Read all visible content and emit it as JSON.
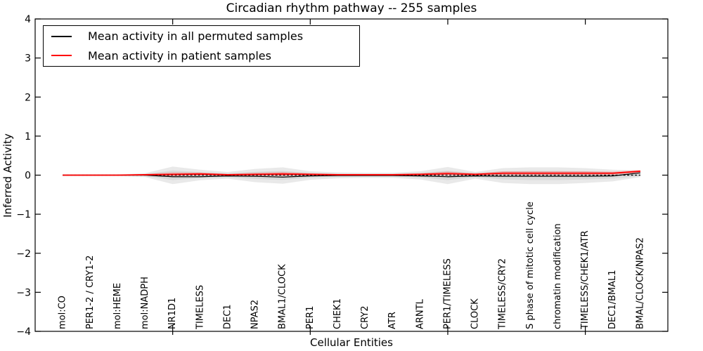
{
  "figure": {
    "background": "#ffffff"
  },
  "chart_data": {
    "type": "line",
    "title": "Circadian rhythm pathway -- 255 samples",
    "xlabel": "Cellular Entities",
    "ylabel": "Inferred Activity",
    "ylim": [
      -4,
      4
    ],
    "ytick_values": [
      4,
      3,
      2,
      1,
      0,
      -1,
      -2,
      -3,
      -4
    ],
    "ytick_labels": [
      "4",
      "3",
      "2",
      "1",
      "0",
      "−1",
      "−2",
      "−3",
      "−4"
    ],
    "grid": false,
    "categories": [
      "mol:CO",
      "PER1-2 / CRY1-2",
      "mol:HEME",
      "mol:NADPH",
      "NR1D1",
      "TIMELESS",
      "DEC1",
      "NPAS2",
      "BMAL1/CLOCK",
      "PER1",
      "CHEK1",
      "CRY2",
      "ATR",
      "ARNTL",
      "PER1/TIMELESS",
      "CLOCK",
      "TIMELESS/CRY2",
      "S phase of mitotic cell cycle",
      "chromatin modification",
      "TIMELESS/CHEK1/ATR",
      "DEC1/BMAL1",
      "BMAL/CLOCK/NPAS2"
    ],
    "x_major_tick_indices": [
      4,
      9,
      14,
      19
    ],
    "legend": {
      "position": "upper-left",
      "entries": [
        {
          "label": "Mean activity in all permuted samples",
          "color": "#000000"
        },
        {
          "label": "Mean activity in patient samples",
          "color": "#ff0000"
        }
      ]
    },
    "zero_line": {
      "value": 0,
      "color": "#000000",
      "style": "dotted"
    },
    "series": [
      {
        "name": "Mean activity in all permuted samples",
        "color": "#000000",
        "style": "solid",
        "width": 1.2,
        "values": [
          0,
          0,
          0,
          0,
          -0.04,
          -0.04,
          -0.02,
          -0.03,
          -0.05,
          -0.02,
          -0.01,
          -0.01,
          -0.01,
          -0.02,
          -0.04,
          -0.02,
          -0.03,
          -0.03,
          -0.03,
          -0.03,
          -0.02,
          0.06
        ]
      },
      {
        "name": "Mean activity in patient samples",
        "color": "#ff0000",
        "style": "solid",
        "width": 1.8,
        "values": [
          0,
          0,
          0,
          0.01,
          0.02,
          0.03,
          0.01,
          0.02,
          0.03,
          0.02,
          0.01,
          0.01,
          0.01,
          0.02,
          0.04,
          0.02,
          0.05,
          0.05,
          0.05,
          0.05,
          0.05,
          0.1
        ]
      }
    ],
    "bands": {
      "permuted_envelope_outer": {
        "color": "#e9e9e9",
        "hi": [
          0.02,
          0.02,
          0.02,
          0.05,
          0.22,
          0.14,
          0.08,
          0.16,
          0.2,
          0.1,
          0.07,
          0.06,
          0.06,
          0.1,
          0.21,
          0.08,
          0.18,
          0.2,
          0.2,
          0.18,
          0.14,
          0.12
        ],
        "lo": [
          -0.02,
          -0.02,
          -0.02,
          -0.05,
          -0.23,
          -0.13,
          -0.09,
          -0.18,
          -0.22,
          -0.12,
          -0.08,
          -0.07,
          -0.07,
          -0.11,
          -0.23,
          -0.09,
          -0.2,
          -0.23,
          -0.23,
          -0.2,
          -0.16,
          -0.05
        ]
      },
      "permuted_envelope_inner": {
        "color": "#dadada",
        "scale_of_outer": 0.55
      },
      "patient_band": {
        "color": "rgba(255,0,0,0.22)",
        "halfwidth": [
          0.01,
          0.01,
          0.01,
          0.02,
          0.05,
          0.04,
          0.02,
          0.04,
          0.05,
          0.03,
          0.02,
          0.02,
          0.02,
          0.03,
          0.05,
          0.03,
          0.05,
          0.05,
          0.05,
          0.05,
          0.04,
          0.03
        ]
      }
    }
  }
}
